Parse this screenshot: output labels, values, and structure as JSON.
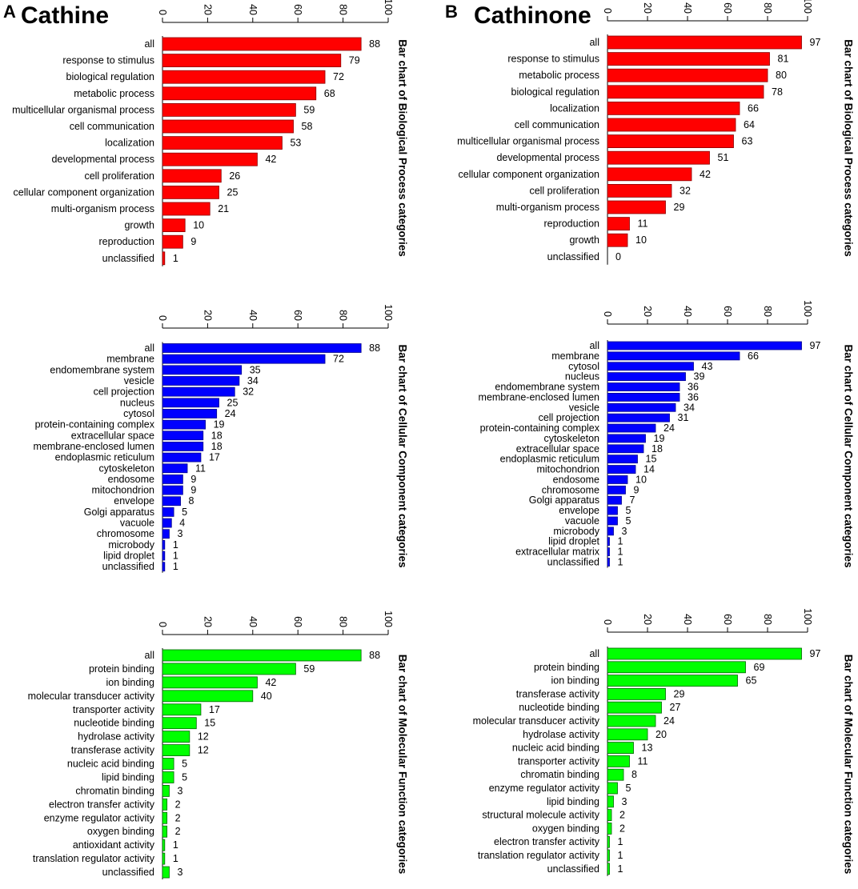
{
  "panels": [
    {
      "letter": "A",
      "name": "Cathine"
    },
    {
      "letter": "B",
      "name": "Cathinone"
    }
  ],
  "chart_data": [
    {
      "type": "bar",
      "orientation": "horizontal",
      "panel": "A",
      "color": "#ff0000",
      "title": "Bar chart of Biological Process categories",
      "xlim": [
        0,
        100
      ],
      "ticks": [
        0,
        20,
        40,
        60,
        80,
        100
      ],
      "categories": [
        "all",
        "response to stimulus",
        "biological regulation",
        "metabolic process",
        "multicellular organismal process",
        "cell communication",
        "localization",
        "developmental process",
        "cell proliferation",
        "cellular component organization",
        "multi-organism process",
        "growth",
        "reproduction",
        "unclassified"
      ],
      "values": [
        88,
        79,
        72,
        68,
        59,
        58,
        53,
        42,
        26,
        25,
        21,
        10,
        9,
        1
      ]
    },
    {
      "type": "bar",
      "orientation": "horizontal",
      "panel": "B",
      "color": "#ff0000",
      "title": "Bar chart of Biological Process categories",
      "xlim": [
        0,
        100
      ],
      "ticks": [
        0,
        20,
        40,
        60,
        80,
        100
      ],
      "categories": [
        "all",
        "response to stimulus",
        "metabolic process",
        "biological regulation",
        "localization",
        "cell communication",
        "multicellular organismal process",
        "developmental process",
        "cellular component organization",
        "cell proliferation",
        "multi-organism process",
        "reproduction",
        "growth",
        "unclassified"
      ],
      "values": [
        97,
        81,
        80,
        78,
        66,
        64,
        63,
        51,
        42,
        32,
        29,
        11,
        10,
        0
      ]
    },
    {
      "type": "bar",
      "orientation": "horizontal",
      "panel": "A",
      "color": "#0000ff",
      "title": "Bar chart of Cellular Component categories",
      "xlim": [
        0,
        100
      ],
      "ticks": [
        0,
        20,
        40,
        60,
        80,
        100
      ],
      "categories": [
        "all",
        "membrane",
        "endomembrane system",
        "vesicle",
        "cell projection",
        "nucleus",
        "cytosol",
        "protein-containing complex",
        "extracellular space",
        "membrane-enclosed lumen",
        "endoplasmic reticulum",
        "cytoskeleton",
        "endosome",
        "mitochondrion",
        "envelope",
        "Golgi apparatus",
        "vacuole",
        "chromosome",
        "microbody",
        "lipid droplet",
        "unclassified"
      ],
      "values": [
        88,
        72,
        35,
        34,
        32,
        25,
        24,
        19,
        18,
        18,
        17,
        11,
        9,
        9,
        8,
        5,
        4,
        3,
        1,
        1,
        1
      ]
    },
    {
      "type": "bar",
      "orientation": "horizontal",
      "panel": "B",
      "color": "#0000ff",
      "title": "Bar chart of Cellular Component categories",
      "xlim": [
        0,
        100
      ],
      "ticks": [
        0,
        20,
        40,
        60,
        80,
        100
      ],
      "categories": [
        "all",
        "membrane",
        "cytosol",
        "nucleus",
        "endomembrane system",
        "membrane-enclosed lumen",
        "vesicle",
        "cell projection",
        "protein-containing complex",
        "cytoskeleton",
        "extracellular space",
        "endoplasmic reticulum",
        "mitochondrion",
        "endosome",
        "chromosome",
        "Golgi apparatus",
        "envelope",
        "vacuole",
        "microbody",
        "lipid droplet",
        "extracellular matrix",
        "unclassified"
      ],
      "values": [
        97,
        66,
        43,
        39,
        36,
        36,
        34,
        31,
        24,
        19,
        18,
        15,
        14,
        10,
        9,
        7,
        5,
        5,
        3,
        1,
        1,
        1
      ]
    },
    {
      "type": "bar",
      "orientation": "horizontal",
      "panel": "A",
      "color": "#00ff00",
      "title": "Bar chart of Molecular Function categories",
      "xlim": [
        0,
        100
      ],
      "ticks": [
        0,
        20,
        40,
        60,
        80,
        100
      ],
      "categories": [
        "all",
        "protein binding",
        "ion binding",
        "molecular transducer activity",
        "transporter activity",
        "nucleotide binding",
        "hydrolase activity",
        "transferase activity",
        "nucleic acid binding",
        "lipid binding",
        "chromatin binding",
        "electron transfer activity",
        "enzyme regulator activity",
        "oxygen binding",
        "antioxidant activity",
        "translation regulator activity",
        "unclassified"
      ],
      "values": [
        88,
        59,
        42,
        40,
        17,
        15,
        12,
        12,
        5,
        5,
        3,
        2,
        2,
        2,
        1,
        1,
        3
      ]
    },
    {
      "type": "bar",
      "orientation": "horizontal",
      "panel": "B",
      "color": "#00ff00",
      "title": "Bar chart of Molecular Function categories",
      "xlim": [
        0,
        100
      ],
      "ticks": [
        0,
        20,
        40,
        60,
        80,
        100
      ],
      "categories": [
        "all",
        "protein binding",
        "ion binding",
        "transferase activity",
        "nucleotide binding",
        "molecular transducer activity",
        "hydrolase activity",
        "nucleic acid binding",
        "transporter activity",
        "chromatin binding",
        "enzyme regulator activity",
        "lipid binding",
        "structural molecule activity",
        "oxygen binding",
        "electron transfer activity",
        "translation regulator activity",
        "unclassified"
      ],
      "values": [
        97,
        69,
        65,
        29,
        27,
        24,
        20,
        13,
        11,
        8,
        5,
        3,
        2,
        2,
        1,
        1,
        1
      ]
    }
  ]
}
